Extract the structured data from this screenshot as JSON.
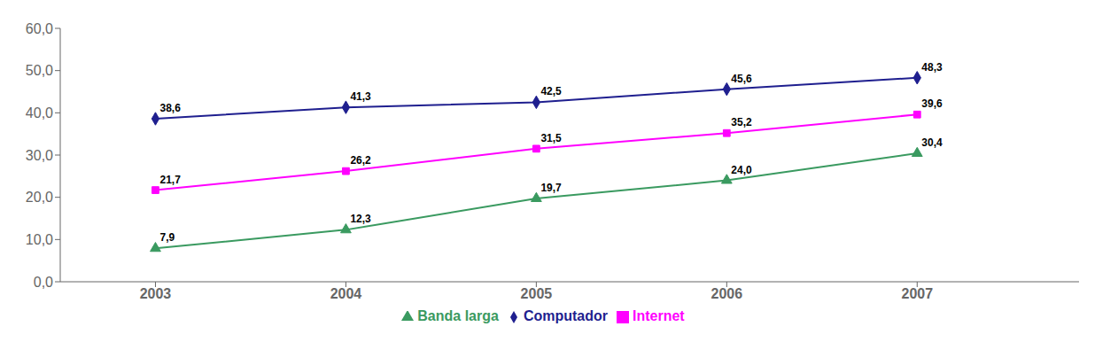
{
  "chart_data": {
    "type": "line",
    "x": [
      2003,
      2004,
      2005,
      2006,
      2007
    ],
    "xlim": [
      2002.5,
      2007.85
    ],
    "xticks": [
      2003,
      2004,
      2005,
      2006,
      2007
    ],
    "ylim": [
      0,
      60
    ],
    "yticks": [
      {
        "value": 0,
        "label": "0,0"
      },
      {
        "value": 10,
        "label": "10,0"
      },
      {
        "value": 20,
        "label": "20,0"
      },
      {
        "value": 30,
        "label": "30,0"
      },
      {
        "value": 40,
        "label": "40,0"
      },
      {
        "value": 50,
        "label": "50,0"
      },
      {
        "value": 60,
        "label": "60,0"
      }
    ],
    "grid": false,
    "legend": "bottom",
    "data_labels": true,
    "series": [
      {
        "name": "Computador",
        "color": "#1F1F8F",
        "marker": "diamond",
        "values": [
          38.6,
          41.3,
          42.5,
          45.6,
          48.3
        ],
        "value_labels": [
          "38,6",
          "41,3",
          "42,5",
          "45,6",
          "48,3"
        ]
      },
      {
        "name": "Internet",
        "color": "#FF00FF",
        "marker": "square",
        "values": [
          21.7,
          26.2,
          31.5,
          35.2,
          39.6
        ],
        "value_labels": [
          "21,7",
          "26,2",
          "31,5",
          "35,2",
          "39,6"
        ]
      },
      {
        "name": "Banda larga",
        "color": "#3A9A60",
        "marker": "triangle",
        "values": [
          7.9,
          12.3,
          19.7,
          24.0,
          30.4
        ],
        "value_labels": [
          "7,9",
          "12,3",
          "19,7",
          "24,0",
          "30,4"
        ]
      }
    ]
  }
}
